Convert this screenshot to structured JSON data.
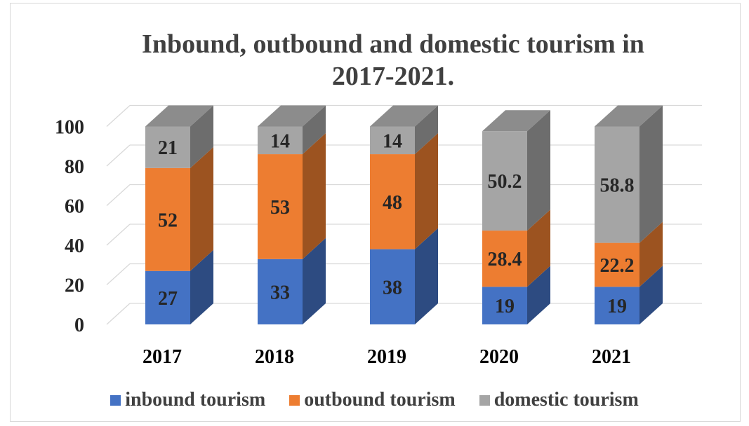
{
  "chart_data": {
    "type": "bar",
    "stacked": true,
    "three_d": true,
    "title": "Inbound, outbound and domestic tourism in 2017-2021.",
    "categories": [
      "2017",
      "2018",
      "2019",
      "2020",
      "2021"
    ],
    "series": [
      {
        "name": "inbound tourism",
        "color": "#4472c4",
        "values": [
          27,
          33,
          38,
          19,
          19
        ]
      },
      {
        "name": "outbound tourism",
        "color": "#ed7d31",
        "values": [
          52,
          53,
          48,
          28.4,
          22.2
        ]
      },
      {
        "name": "domestic tourism",
        "color": "#a5a5a5",
        "values": [
          21,
          14,
          14,
          50.2,
          58.8
        ]
      }
    ],
    "data_labels": [
      [
        "27",
        "33",
        "38",
        "19",
        "19"
      ],
      [
        "52",
        "53",
        "48",
        "28.4",
        "22.2"
      ],
      [
        "21",
        "14",
        "14",
        "50.2",
        "58.8"
      ]
    ],
    "ylim": [
      0,
      100
    ],
    "yticks": [
      "0",
      "20",
      "40",
      "60",
      "80",
      "100"
    ],
    "grid": true,
    "legend_position": "bottom"
  }
}
